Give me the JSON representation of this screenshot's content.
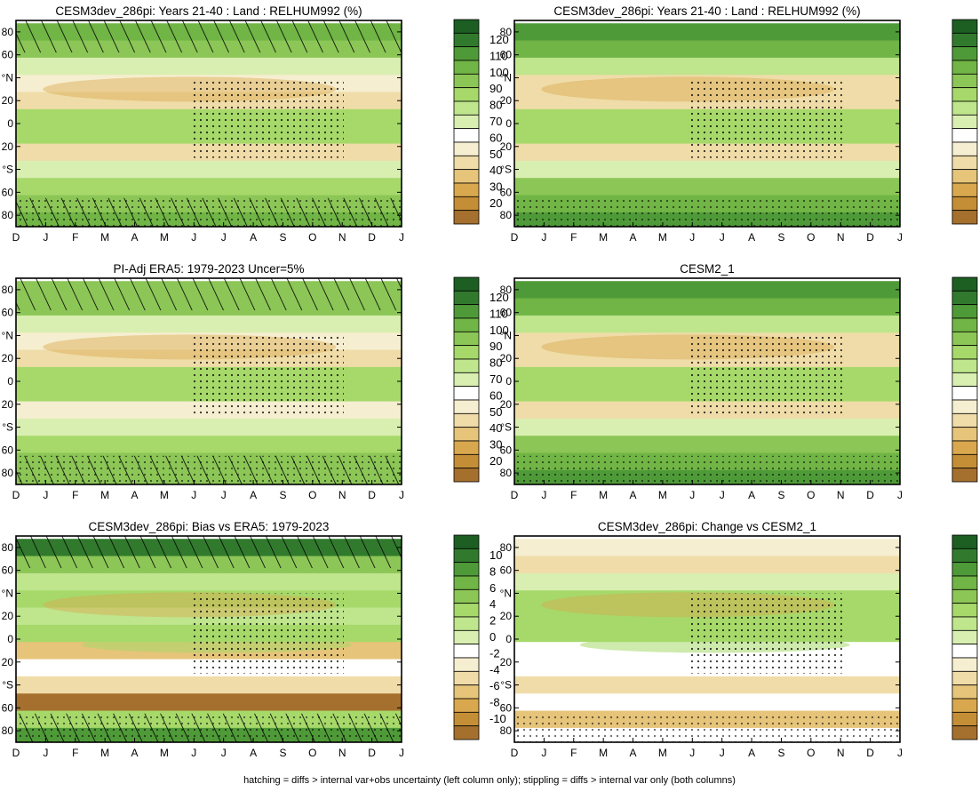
{
  "colors": {
    "abs_scale": [
      "#a5702e",
      "#c48e37",
      "#d9a84e",
      "#e6c47a",
      "#efdca8",
      "#f6eed0",
      "#ffffff",
      "#d9efb1",
      "#bfe58d",
      "#a6d96a",
      "#8cc657",
      "#70b545",
      "#4f9a38",
      "#317a2d",
      "#1d5e23"
    ],
    "bias_scale": [
      "#a5702e",
      "#c48e37",
      "#d9a84e",
      "#e6c47a",
      "#efdca8",
      "#f6eed0",
      "#ffffff",
      "#d9efb1",
      "#bfe58d",
      "#a6d96a",
      "#8cc657",
      "#70b545",
      "#4f9a38",
      "#317a2d",
      "#1d5e23"
    ]
  },
  "months": [
    "D",
    "J",
    "F",
    "M",
    "A",
    "M",
    "J",
    "J",
    "A",
    "S",
    "O",
    "N",
    "D",
    "J"
  ],
  "lat_labels": [
    "80",
    "60",
    "°N",
    "20",
    "0",
    "-20",
    "°S",
    "-60",
    "-80"
  ],
  "lat_labels_display": [
    "80",
    "60",
    "°N",
    "20",
    "0",
    "20",
    "°S",
    "60",
    "80"
  ],
  "footnote": "hatching = diffs > internal var+obs uncertainty (left column only); stippling = diffs > internal var only (both columns)",
  "chart_data": [
    {
      "type": "heatmap",
      "title": "CESM3dev_286pi: Years 21-40 : Land : RELHUM992 (%)",
      "x_categories": [
        "D",
        "J",
        "F",
        "M",
        "A",
        "M",
        "J",
        "J",
        "A",
        "S",
        "O",
        "N",
        "D",
        "J"
      ],
      "y_ticks": [
        "80",
        "60",
        "°N",
        "20",
        "0",
        "20",
        "°S",
        "60",
        "80"
      ],
      "colorbar_levels": [
        120,
        110,
        100,
        90,
        80,
        70,
        60,
        50,
        40,
        30,
        20
      ],
      "bands": [
        {
          "lat": 80,
          "value": 98
        },
        {
          "lat": 65,
          "value": 90
        },
        {
          "lat": 50,
          "value": 72
        },
        {
          "lat": 35,
          "value": 55
        },
        {
          "lat": 20,
          "value": 50
        },
        {
          "lat": 5,
          "value": 80
        },
        {
          "lat": -10,
          "value": 85
        },
        {
          "lat": -25,
          "value": 52
        },
        {
          "lat": -40,
          "value": 70
        },
        {
          "lat": -55,
          "value": 85
        },
        {
          "lat": -70,
          "value": 92
        },
        {
          "lat": -85,
          "value": 95
        }
      ],
      "hatching": "left",
      "stippling": true
    },
    {
      "type": "heatmap",
      "title": "CESM3dev_286pi: Years 21-40 : Land : RELHUM992 (%)",
      "x_categories": [
        "D",
        "J",
        "F",
        "M",
        "A",
        "M",
        "J",
        "J",
        "A",
        "S",
        "O",
        "N",
        "D",
        "J"
      ],
      "y_ticks": [
        "80",
        "60",
        "°N",
        "20",
        "0",
        "20",
        "°S",
        "60",
        "80"
      ],
      "colorbar_levels": [
        120,
        110,
        100,
        90,
        80,
        70,
        60,
        50,
        40,
        30,
        20
      ],
      "bands": [
        {
          "lat": 80,
          "value": 100
        },
        {
          "lat": 65,
          "value": 95
        },
        {
          "lat": 50,
          "value": 75
        },
        {
          "lat": 35,
          "value": 52
        },
        {
          "lat": 20,
          "value": 48
        },
        {
          "lat": 5,
          "value": 82
        },
        {
          "lat": -10,
          "value": 85
        },
        {
          "lat": -25,
          "value": 50
        },
        {
          "lat": -40,
          "value": 70
        },
        {
          "lat": -55,
          "value": 88
        },
        {
          "lat": -70,
          "value": 95
        },
        {
          "lat": -85,
          "value": 102
        }
      ],
      "hatching": "none",
      "stippling": true
    },
    {
      "type": "heatmap",
      "title": "PI-Adj ERA5: 1979-2023 Uncer=5%",
      "x_categories": [
        "D",
        "J",
        "F",
        "M",
        "A",
        "M",
        "J",
        "J",
        "A",
        "S",
        "O",
        "N",
        "D",
        "J"
      ],
      "y_ticks": [
        "80",
        "60",
        "°N",
        "20",
        "0",
        "20",
        "°S",
        "60",
        "80"
      ],
      "colorbar_levels": [
        120,
        110,
        100,
        90,
        80,
        70,
        60,
        50,
        40,
        30,
        20
      ],
      "bands": [
        {
          "lat": 80,
          "value": 92
        },
        {
          "lat": 65,
          "value": 88
        },
        {
          "lat": 50,
          "value": 72
        },
        {
          "lat": 35,
          "value": 58
        },
        {
          "lat": 20,
          "value": 52
        },
        {
          "lat": 5,
          "value": 82
        },
        {
          "lat": -10,
          "value": 82
        },
        {
          "lat": -25,
          "value": 55
        },
        {
          "lat": -40,
          "value": 72
        },
        {
          "lat": -55,
          "value": 82
        },
        {
          "lat": -70,
          "value": 88
        },
        {
          "lat": -85,
          "value": 90
        }
      ],
      "hatching": "left",
      "stippling": true
    },
    {
      "type": "heatmap",
      "title": "CESM2_1",
      "x_categories": [
        "D",
        "J",
        "F",
        "M",
        "A",
        "M",
        "J",
        "J",
        "A",
        "S",
        "O",
        "N",
        "D",
        "J"
      ],
      "y_ticks": [
        "80",
        "60",
        "°N",
        "20",
        "0",
        "20",
        "°S",
        "60",
        "80"
      ],
      "colorbar_levels": [
        120,
        110,
        100,
        90,
        80,
        70,
        60,
        50,
        40,
        30,
        20
      ],
      "bands": [
        {
          "lat": 80,
          "value": 102
        },
        {
          "lat": 65,
          "value": 98
        },
        {
          "lat": 50,
          "value": 75
        },
        {
          "lat": 35,
          "value": 52
        },
        {
          "lat": 20,
          "value": 48
        },
        {
          "lat": 5,
          "value": 84
        },
        {
          "lat": -10,
          "value": 86
        },
        {
          "lat": -25,
          "value": 52
        },
        {
          "lat": -40,
          "value": 72
        },
        {
          "lat": -55,
          "value": 90
        },
        {
          "lat": -70,
          "value": 98
        },
        {
          "lat": -85,
          "value": 104
        }
      ],
      "hatching": "none",
      "stippling": true
    },
    {
      "type": "heatmap",
      "title": "CESM3dev_286pi: Bias vs ERA5: 1979-2023",
      "x_categories": [
        "D",
        "J",
        "F",
        "M",
        "A",
        "M",
        "J",
        "J",
        "A",
        "S",
        "O",
        "N",
        "D",
        "J"
      ],
      "y_ticks": [
        "80",
        "60",
        "°N",
        "20",
        "0",
        "20",
        "°S",
        "60",
        "80"
      ],
      "colorbar_levels": [
        10,
        8,
        6,
        4,
        2,
        0,
        -2,
        -4,
        -6,
        -8,
        -10
      ],
      "bands": [
        {
          "lat": 80,
          "value": 8
        },
        {
          "lat": 65,
          "value": 4
        },
        {
          "lat": 50,
          "value": 1
        },
        {
          "lat": 35,
          "value": 2
        },
        {
          "lat": 20,
          "value": 1
        },
        {
          "lat": 5,
          "value": 2
        },
        {
          "lat": -10,
          "value": -5
        },
        {
          "lat": -25,
          "value": -2
        },
        {
          "lat": -40,
          "value": -4
        },
        {
          "lat": -55,
          "value": -9
        },
        {
          "lat": -70,
          "value": 3
        },
        {
          "lat": -85,
          "value": 6
        }
      ],
      "hatching": "left",
      "stippling": true
    },
    {
      "type": "heatmap",
      "title": "CESM3dev_286pi: Change vs CESM2_1",
      "x_categories": [
        "D",
        "J",
        "F",
        "M",
        "A",
        "M",
        "J",
        "J",
        "A",
        "S",
        "O",
        "N",
        "D",
        "J"
      ],
      "y_ticks": [
        "80",
        "60",
        "°N",
        "20",
        "0",
        "20",
        "°S",
        "60",
        "80"
      ],
      "colorbar_levels": [
        10,
        8,
        6,
        4,
        2,
        0,
        -2,
        -4,
        -6,
        -8,
        -10
      ],
      "bands": [
        {
          "lat": 80,
          "value": -3
        },
        {
          "lat": 65,
          "value": -4
        },
        {
          "lat": 50,
          "value": 0
        },
        {
          "lat": 35,
          "value": 3
        },
        {
          "lat": 20,
          "value": 2
        },
        {
          "lat": 5,
          "value": 3
        },
        {
          "lat": -10,
          "value": -2
        },
        {
          "lat": -25,
          "value": -1
        },
        {
          "lat": -40,
          "value": -4
        },
        {
          "lat": -55,
          "value": -2
        },
        {
          "lat": -70,
          "value": -5
        },
        {
          "lat": -85,
          "value": -2
        }
      ],
      "hatching": "none",
      "stippling": true
    }
  ]
}
